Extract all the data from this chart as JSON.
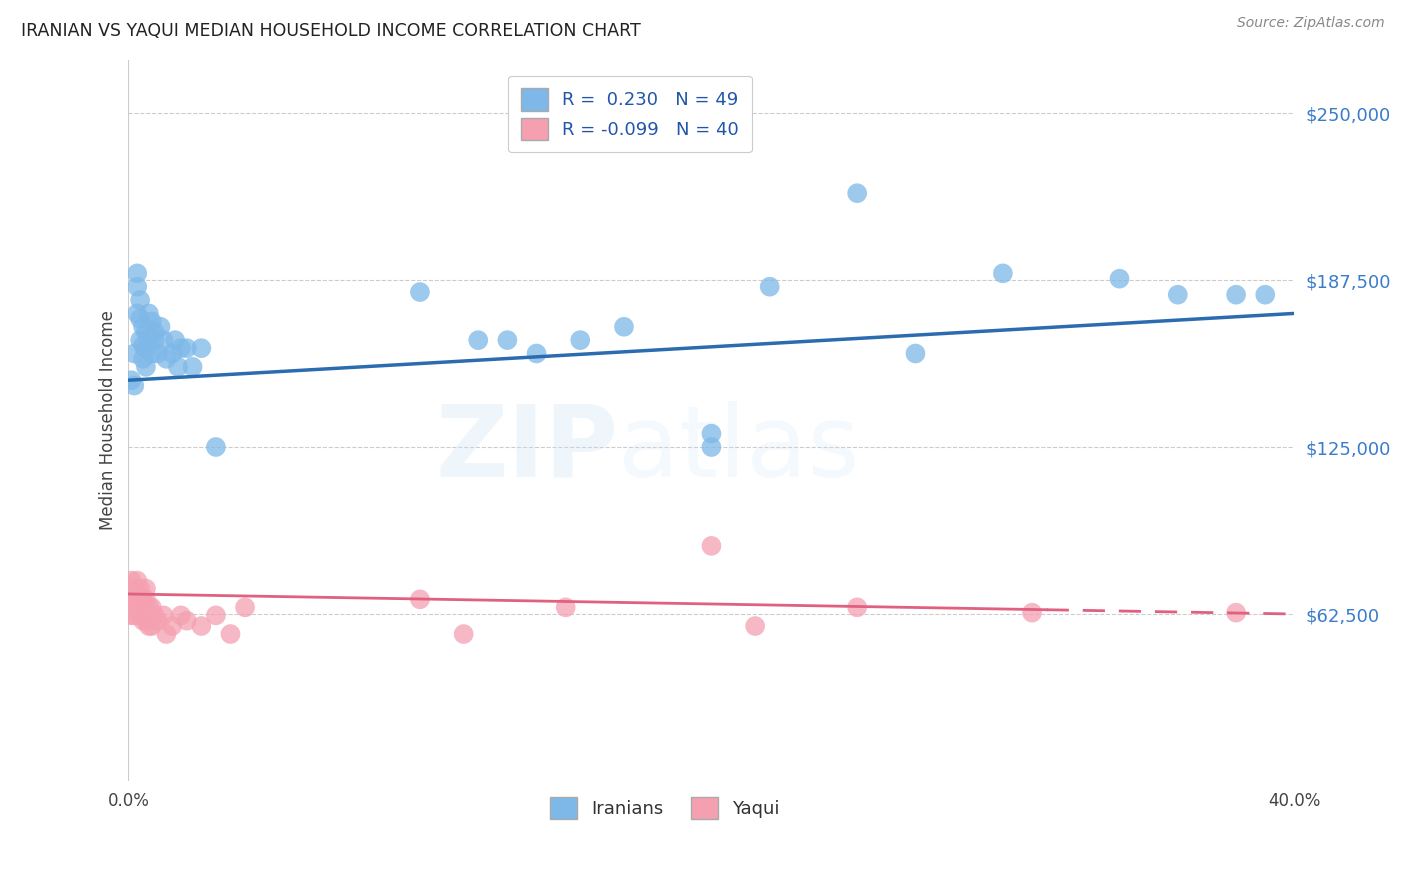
{
  "title": "IRANIAN VS YAQUI MEDIAN HOUSEHOLD INCOME CORRELATION CHART",
  "source": "Source: ZipAtlas.com",
  "ylabel": "Median Household Income",
  "watermark": "ZIPatlas",
  "ytick_labels": [
    "$250,000",
    "$187,500",
    "$125,000",
    "$62,500"
  ],
  "ytick_values": [
    250000,
    187500,
    125000,
    62500
  ],
  "ymin": 0,
  "ymax": 270000,
  "xmin": 0.0,
  "xmax": 0.4,
  "iranian_R": 0.23,
  "iranian_N": 49,
  "yaqui_R": -0.099,
  "yaqui_N": 40,
  "legend_label_iranian": "R =  0.230   N = 49",
  "legend_label_yaqui": "R = -0.099   N = 40",
  "color_iranian": "#7db8e8",
  "color_yaqui": "#f4a0b0",
  "color_line_iranian": "#2b6cb0",
  "color_line_yaqui": "#e06080",
  "color_title": "#222222",
  "color_ytick": "#3a7cc9",
  "color_source": "#888888",
  "color_legend_text": "#2255aa",
  "background_color": "#ffffff",
  "iranian_x": [
    0.001,
    0.002,
    0.002,
    0.003,
    0.003,
    0.003,
    0.004,
    0.004,
    0.004,
    0.005,
    0.005,
    0.005,
    0.006,
    0.006,
    0.006,
    0.007,
    0.007,
    0.008,
    0.008,
    0.009,
    0.009,
    0.01,
    0.011,
    0.012,
    0.013,
    0.015,
    0.016,
    0.017,
    0.018,
    0.02,
    0.022,
    0.025,
    0.03,
    0.1,
    0.13,
    0.155,
    0.17,
    0.2,
    0.22,
    0.25,
    0.27,
    0.3,
    0.34,
    0.36,
    0.38,
    0.39,
    0.12,
    0.14,
    0.2
  ],
  "iranian_y": [
    150000,
    160000,
    148000,
    190000,
    185000,
    175000,
    180000,
    173000,
    165000,
    170000,
    163000,
    158000,
    168000,
    162000,
    155000,
    175000,
    165000,
    172000,
    160000,
    168000,
    165000,
    160000,
    170000,
    165000,
    158000,
    160000,
    165000,
    155000,
    162000,
    162000,
    155000,
    162000,
    125000,
    183000,
    165000,
    165000,
    170000,
    130000,
    185000,
    220000,
    160000,
    190000,
    188000,
    182000,
    182000,
    182000,
    165000,
    160000,
    125000
  ],
  "yaqui_x": [
    0.001,
    0.001,
    0.001,
    0.002,
    0.002,
    0.002,
    0.003,
    0.003,
    0.003,
    0.004,
    0.004,
    0.004,
    0.005,
    0.005,
    0.006,
    0.006,
    0.006,
    0.007,
    0.007,
    0.008,
    0.008,
    0.009,
    0.01,
    0.012,
    0.013,
    0.015,
    0.018,
    0.02,
    0.025,
    0.03,
    0.035,
    0.04,
    0.1,
    0.115,
    0.15,
    0.2,
    0.215,
    0.25,
    0.31,
    0.38
  ],
  "yaqui_y": [
    75000,
    68000,
    62000,
    72000,
    68000,
    62000,
    75000,
    70000,
    65000,
    72000,
    68000,
    62000,
    68000,
    60000,
    72000,
    68000,
    60000,
    65000,
    58000,
    65000,
    58000,
    62000,
    60000,
    62000,
    55000,
    58000,
    62000,
    60000,
    58000,
    62000,
    55000,
    65000,
    68000,
    55000,
    65000,
    88000,
    58000,
    65000,
    63000,
    63000
  ]
}
